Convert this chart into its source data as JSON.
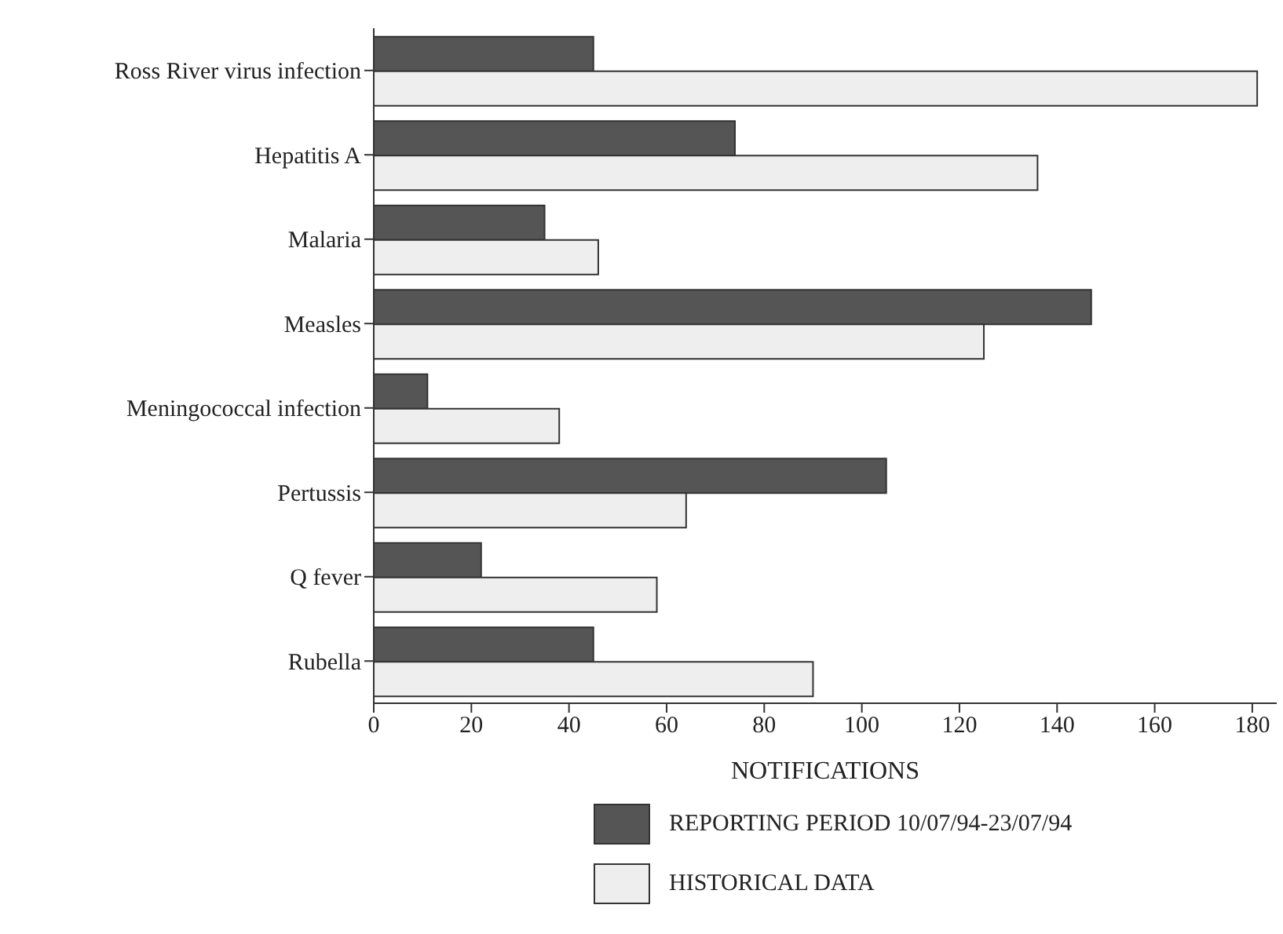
{
  "chart_data": {
    "type": "bar",
    "orientation": "horizontal",
    "xlabel": "NOTIFICATIONS",
    "categories": [
      "Ross River virus infection",
      "Hepatitis A",
      "Malaria",
      "Measles",
      "Meningococcal infection",
      "Pertussis",
      "Q fever",
      "Rubella"
    ],
    "series": [
      {
        "name": "REPORTING PERIOD 10/07/94-23/07/94",
        "color": "#555555",
        "values": [
          45,
          74,
          35,
          147,
          11,
          105,
          22,
          45
        ]
      },
      {
        "name": "HISTORICAL DATA",
        "color": "#eeeeee",
        "values": [
          181,
          136,
          46,
          125,
          38,
          64,
          58,
          90
        ]
      }
    ],
    "xlim": [
      0,
      185
    ],
    "xticks": [
      0,
      20,
      40,
      60,
      80,
      100,
      120,
      140,
      160,
      180
    ],
    "legend": "bottom"
  }
}
